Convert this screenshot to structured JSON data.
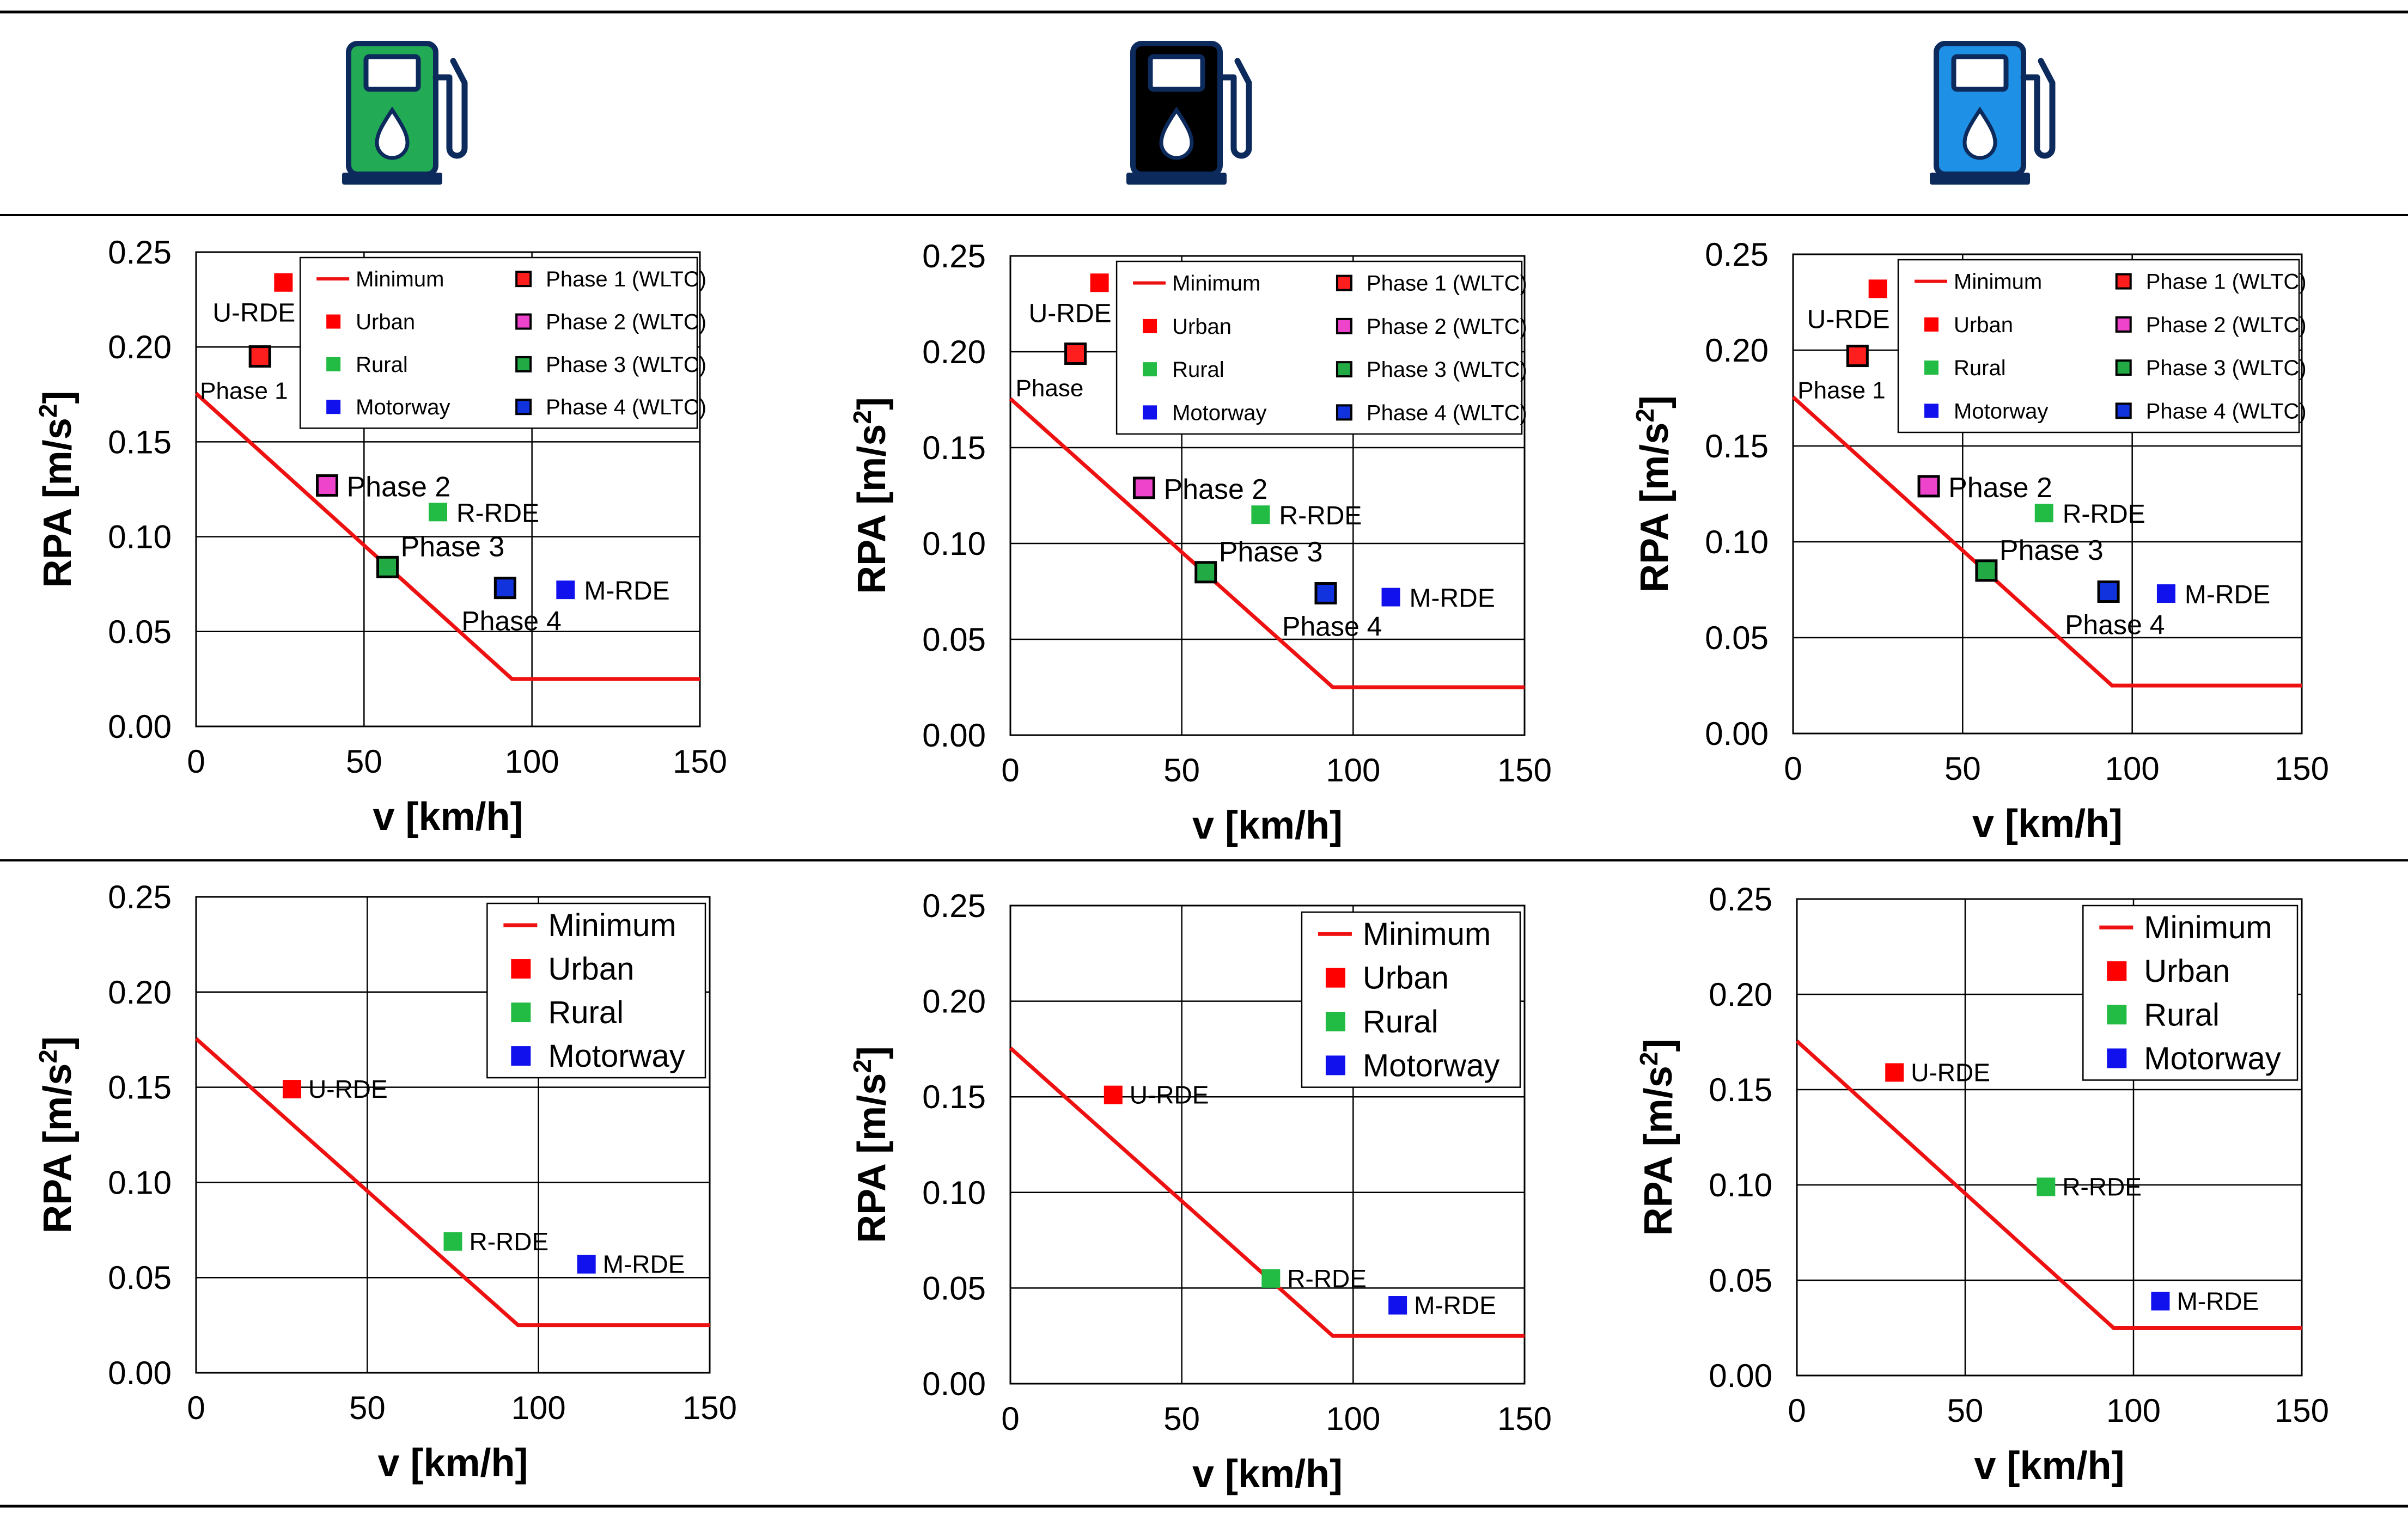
{
  "fuel_icons": [
    {
      "name": "fuel-pump-green-icon",
      "color": "#22aa55"
    },
    {
      "name": "fuel-pump-black-icon",
      "color": "#000000"
    },
    {
      "name": "fuel-pump-blue-icon",
      "color": "#1e90e6"
    }
  ],
  "colors": {
    "minimum": "#ee1111",
    "urban": "#ff0000",
    "rural": "#22bb44",
    "motorway": "#1111ee",
    "phase1": "#ff1e1e",
    "phase2": "#ee44cc",
    "phase3": "#22aa44",
    "phase4": "#1133dd",
    "grid": "#000000"
  },
  "chart_data": [
    {
      "type": "scatter",
      "id": "top-left",
      "xlabel": "v [km/h]",
      "ylabel_main": "RPA [m/s",
      "ylabel_sup": "2",
      "ylabel_end": "]",
      "xlim": [
        0,
        150
      ],
      "ylim": [
        0,
        0.25
      ],
      "xticks": [
        "0",
        "50",
        "100",
        "150"
      ],
      "yticks": [
        "0.00",
        "0.05",
        "0.10",
        "0.15",
        "0.20",
        "0.25"
      ],
      "minimum_line": {
        "x": [
          0,
          94.05,
          150
        ],
        "y": [
          0.1755,
          0.025,
          0.025
        ]
      },
      "legend_size": "small",
      "legend": [
        "Minimum",
        "Urban",
        "Rural",
        "Motorway",
        "Phase 1 (WLTC)",
        "Phase 2 (WLTC)",
        "Phase 3 (WLTC)",
        "Phase 4 (WLTC)"
      ],
      "points": [
        {
          "label": "U-RDE",
          "series": "urban",
          "x": 26,
          "y": 0.234
        },
        {
          "label": "R-RDE",
          "series": "rural",
          "x": 72,
          "y": 0.113
        },
        {
          "label": "M-RDE",
          "series": "motorway",
          "x": 110,
          "y": 0.072
        },
        {
          "label": "Phase 1",
          "series": "phase1",
          "x": 19,
          "y": 0.195
        },
        {
          "label": "Phase 2",
          "series": "phase2",
          "x": 39,
          "y": 0.127
        },
        {
          "label": "Phase 3",
          "series": "phase3",
          "x": 57,
          "y": 0.084
        },
        {
          "label": "Phase 4",
          "series": "phase4",
          "x": 92,
          "y": 0.073
        }
      ]
    },
    {
      "type": "scatter",
      "id": "top-middle",
      "xlabel": "v [km/h]",
      "ylabel_main": "RPA [m/s",
      "ylabel_sup": "2",
      "ylabel_end": "]",
      "xlim": [
        0,
        150
      ],
      "ylim": [
        0,
        0.25
      ],
      "xticks": [
        "0",
        "50",
        "100",
        "150"
      ],
      "yticks": [
        "0.00",
        "0.05",
        "0.10",
        "0.15",
        "0.20",
        "0.25"
      ],
      "minimum_line": {
        "x": [
          0,
          94.05,
          150
        ],
        "y": [
          0.1755,
          0.025,
          0.025
        ]
      },
      "legend_size": "small",
      "legend": [
        "Minimum",
        "Urban",
        "Rural",
        "Motorway",
        "Phase 1 (WLTC)",
        "Phase 2 (WLTC)",
        "Phase 3 (WLTC)",
        "Phase 4 (WLTC)"
      ],
      "points": [
        {
          "label": "U-RDE",
          "series": "urban",
          "x": 26,
          "y": 0.236
        },
        {
          "label": "R-RDE",
          "series": "rural",
          "x": 73,
          "y": 0.115
        },
        {
          "label": "M-RDE",
          "series": "motorway",
          "x": 111,
          "y": 0.072
        },
        {
          "label": "Phase",
          "series": "phase1",
          "x": 19,
          "y": 0.199
        },
        {
          "label": "Phase 2",
          "series": "phase2",
          "x": 39,
          "y": 0.129
        },
        {
          "label": "Phase 3",
          "series": "phase3",
          "x": 57,
          "y": 0.085
        },
        {
          "label": "Phase 4",
          "series": "phase4",
          "x": 92,
          "y": 0.074
        }
      ]
    },
    {
      "type": "scatter",
      "id": "top-right",
      "xlabel": "v [km/h]",
      "ylabel_main": "RPA [m/s",
      "ylabel_sup": "2",
      "ylabel_end": "]",
      "xlim": [
        0,
        150
      ],
      "ylim": [
        0,
        0.25
      ],
      "xticks": [
        "0",
        "50",
        "100",
        "150"
      ],
      "yticks": [
        "0.00",
        "0.05",
        "0.10",
        "0.15",
        "0.20",
        "0.25"
      ],
      "minimum_line": {
        "x": [
          0,
          94.05,
          150
        ],
        "y": [
          0.1755,
          0.025,
          0.025
        ]
      },
      "legend_size": "small",
      "legend": [
        "Minimum",
        "Urban",
        "Rural",
        "Motorway",
        "Phase 1 (WLTC)",
        "Phase 2 (WLTC)",
        "Phase 3 (WLTC)",
        "Phase 4 (WLTC)"
      ],
      "points": [
        {
          "label": "U-RDE",
          "series": "urban",
          "x": 25,
          "y": 0.232
        },
        {
          "label": "R-RDE",
          "series": "rural",
          "x": 74,
          "y": 0.115
        },
        {
          "label": "M-RDE",
          "series": "motorway",
          "x": 110,
          "y": 0.073
        },
        {
          "label": "Phase 1",
          "series": "phase1",
          "x": 19,
          "y": 0.197
        },
        {
          "label": "Phase 2",
          "series": "phase2",
          "x": 40,
          "y": 0.129
        },
        {
          "label": "Phase 3",
          "series": "phase3",
          "x": 57,
          "y": 0.085
        },
        {
          "label": "Phase 4",
          "series": "phase4",
          "x": 93,
          "y": 0.074
        }
      ]
    },
    {
      "type": "scatter",
      "id": "bottom-left",
      "xlabel": "v [km/h]",
      "ylabel_main": "RPA [m/s",
      "ylabel_sup": "2",
      "ylabel_end": "]",
      "xlim": [
        0,
        150
      ],
      "ylim": [
        0,
        0.25
      ],
      "xticks": [
        "0",
        "50",
        "100",
        "150"
      ],
      "yticks": [
        "0.00",
        "0.05",
        "0.10",
        "0.15",
        "0.20",
        "0.25"
      ],
      "minimum_line": {
        "x": [
          0,
          94.05,
          150
        ],
        "y": [
          0.1755,
          0.025,
          0.025
        ]
      },
      "legend_size": "large",
      "legend": [
        "Minimum",
        "Urban",
        "Rural",
        "Motorway"
      ],
      "points": [
        {
          "label": "U-RDE",
          "series": "urban",
          "x": 28,
          "y": 0.149
        },
        {
          "label": "R-RDE",
          "series": "rural",
          "x": 75,
          "y": 0.069
        },
        {
          "label": "M-RDE",
          "series": "motorway",
          "x": 114,
          "y": 0.057
        }
      ]
    },
    {
      "type": "scatter",
      "id": "bottom-middle",
      "xlabel": "v [km/h]",
      "ylabel_main": "RPA [m/s",
      "ylabel_sup": "2",
      "ylabel_end": "]",
      "xlim": [
        0,
        150
      ],
      "ylim": [
        0,
        0.25
      ],
      "xticks": [
        "0",
        "50",
        "100",
        "150"
      ],
      "yticks": [
        "0.00",
        "0.05",
        "0.10",
        "0.15",
        "0.20",
        "0.25"
      ],
      "minimum_line": {
        "x": [
          0,
          94.05,
          150
        ],
        "y": [
          0.1755,
          0.025,
          0.025
        ]
      },
      "legend_size": "large",
      "legend": [
        "Minimum",
        "Urban",
        "Rural",
        "Motorway"
      ],
      "points": [
        {
          "label": "U-RDE",
          "series": "urban",
          "x": 30,
          "y": 0.151
        },
        {
          "label": "R-RDE",
          "series": "rural",
          "x": 76,
          "y": 0.055
        },
        {
          "label": "M-RDE",
          "series": "motorway",
          "x": 113,
          "y": 0.041
        }
      ]
    },
    {
      "type": "scatter",
      "id": "bottom-right",
      "xlabel": "v [km/h]",
      "ylabel_main": "RPA [m/s",
      "ylabel_sup": "2",
      "ylabel_end": "]",
      "xlim": [
        0,
        150
      ],
      "ylim": [
        0,
        0.25
      ],
      "xticks": [
        "0",
        "50",
        "100",
        "150"
      ],
      "yticks": [
        "0.00",
        "0.05",
        "0.10",
        "0.15",
        "0.20",
        "0.25"
      ],
      "minimum_line": {
        "x": [
          0,
          94.05,
          150
        ],
        "y": [
          0.1755,
          0.025,
          0.025
        ]
      },
      "legend_size": "large",
      "legend": [
        "Minimum",
        "Urban",
        "Rural",
        "Motorway"
      ],
      "points": [
        {
          "label": "U-RDE",
          "series": "urban",
          "x": 29,
          "y": 0.159
        },
        {
          "label": "R-RDE",
          "series": "rural",
          "x": 74,
          "y": 0.099
        },
        {
          "label": "M-RDE",
          "series": "motorway",
          "x": 108,
          "y": 0.039
        }
      ]
    }
  ]
}
